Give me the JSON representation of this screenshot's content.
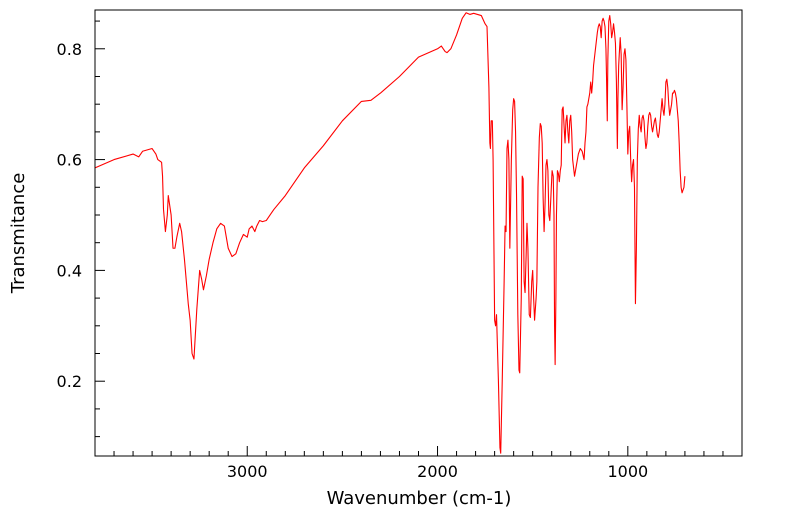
{
  "chart_data": {
    "type": "line",
    "xlabel": "Wavenumber (cm-1)",
    "ylabel": "Transmitance",
    "xlim": [
      3800,
      400
    ],
    "ylim": [
      0.065,
      0.87
    ],
    "x_reversed": true,
    "xticks": [
      {
        "value": 3000,
        "label": "3000"
      },
      {
        "value": 2000,
        "label": "2000"
      },
      {
        "value": 1000,
        "label": "1000"
      }
    ],
    "yticks": [
      {
        "value": 0.2,
        "label": "0.2"
      },
      {
        "value": 0.4,
        "label": "0.4"
      },
      {
        "value": 0.6,
        "label": "0.6"
      },
      {
        "value": 0.8,
        "label": "0.8"
      }
    ],
    "x_minor_step": 100,
    "y_minor_step": 0.05,
    "grid": false,
    "series": [
      {
        "color": "#ff0000",
        "points": [
          [
            3800,
            0.585
          ],
          [
            3700,
            0.6
          ],
          [
            3600,
            0.61
          ],
          [
            3570,
            0.605
          ],
          [
            3550,
            0.615
          ],
          [
            3500,
            0.62
          ],
          [
            3480,
            0.61
          ],
          [
            3470,
            0.6
          ],
          [
            3450,
            0.595
          ],
          [
            3445,
            0.57
          ],
          [
            3440,
            0.51
          ],
          [
            3430,
            0.47
          ],
          [
            3420,
            0.5
          ],
          [
            3415,
            0.535
          ],
          [
            3400,
            0.5
          ],
          [
            3390,
            0.44
          ],
          [
            3380,
            0.44
          ],
          [
            3370,
            0.46
          ],
          [
            3355,
            0.485
          ],
          [
            3345,
            0.47
          ],
          [
            3330,
            0.42
          ],
          [
            3310,
            0.34
          ],
          [
            3300,
            0.31
          ],
          [
            3290,
            0.25
          ],
          [
            3280,
            0.24
          ],
          [
            3265,
            0.33
          ],
          [
            3250,
            0.4
          ],
          [
            3240,
            0.385
          ],
          [
            3230,
            0.365
          ],
          [
            3215,
            0.39
          ],
          [
            3200,
            0.42
          ],
          [
            3180,
            0.45
          ],
          [
            3160,
            0.475
          ],
          [
            3140,
            0.485
          ],
          [
            3120,
            0.48
          ],
          [
            3100,
            0.44
          ],
          [
            3080,
            0.425
          ],
          [
            3060,
            0.43
          ],
          [
            3040,
            0.45
          ],
          [
            3020,
            0.465
          ],
          [
            3000,
            0.46
          ],
          [
            2990,
            0.475
          ],
          [
            2975,
            0.48
          ],
          [
            2960,
            0.47
          ],
          [
            2950,
            0.48
          ],
          [
            2935,
            0.49
          ],
          [
            2920,
            0.488
          ],
          [
            2900,
            0.49
          ],
          [
            2880,
            0.5
          ],
          [
            2860,
            0.51
          ],
          [
            2800,
            0.535
          ],
          [
            2700,
            0.585
          ],
          [
            2600,
            0.625
          ],
          [
            2500,
            0.67
          ],
          [
            2400,
            0.705
          ],
          [
            2350,
            0.707
          ],
          [
            2300,
            0.72
          ],
          [
            2200,
            0.75
          ],
          [
            2100,
            0.785
          ],
          [
            2000,
            0.8
          ],
          [
            1980,
            0.805
          ],
          [
            1960,
            0.795
          ],
          [
            1950,
            0.793
          ],
          [
            1930,
            0.8
          ],
          [
            1900,
            0.825
          ],
          [
            1870,
            0.855
          ],
          [
            1850,
            0.865
          ],
          [
            1830,
            0.862
          ],
          [
            1810,
            0.864
          ],
          [
            1790,
            0.862
          ],
          [
            1770,
            0.86
          ],
          [
            1750,
            0.845
          ],
          [
            1740,
            0.84
          ],
          [
            1730,
            0.73
          ],
          [
            1725,
            0.63
          ],
          [
            1722,
            0.62
          ],
          [
            1718,
            0.67
          ],
          [
            1712,
            0.67
          ],
          [
            1708,
            0.6
          ],
          [
            1700,
            0.31
          ],
          [
            1695,
            0.3
          ],
          [
            1690,
            0.32
          ],
          [
            1680,
            0.2
          ],
          [
            1672,
            0.08
          ],
          [
            1668,
            0.07
          ],
          [
            1660,
            0.2
          ],
          [
            1650,
            0.38
          ],
          [
            1645,
            0.48
          ],
          [
            1640,
            0.47
          ],
          [
            1635,
            0.62
          ],
          [
            1630,
            0.635
          ],
          [
            1625,
            0.6
          ],
          [
            1620,
            0.44
          ],
          [
            1612,
            0.6
          ],
          [
            1605,
            0.69
          ],
          [
            1600,
            0.71
          ],
          [
            1595,
            0.705
          ],
          [
            1590,
            0.65
          ],
          [
            1585,
            0.54
          ],
          [
            1578,
            0.32
          ],
          [
            1572,
            0.22
          ],
          [
            1568,
            0.215
          ],
          [
            1560,
            0.35
          ],
          [
            1555,
            0.57
          ],
          [
            1550,
            0.565
          ],
          [
            1545,
            0.38
          ],
          [
            1540,
            0.36
          ],
          [
            1535,
            0.42
          ],
          [
            1530,
            0.485
          ],
          [
            1525,
            0.44
          ],
          [
            1518,
            0.32
          ],
          [
            1512,
            0.315
          ],
          [
            1505,
            0.38
          ],
          [
            1500,
            0.4
          ],
          [
            1495,
            0.35
          ],
          [
            1490,
            0.31
          ],
          [
            1482,
            0.35
          ],
          [
            1478,
            0.38
          ],
          [
            1472,
            0.55
          ],
          [
            1465,
            0.64
          ],
          [
            1460,
            0.665
          ],
          [
            1455,
            0.66
          ],
          [
            1450,
            0.63
          ],
          [
            1445,
            0.53
          ],
          [
            1440,
            0.47
          ],
          [
            1435,
            0.52
          ],
          [
            1430,
            0.59
          ],
          [
            1425,
            0.6
          ],
          [
            1420,
            0.58
          ],
          [
            1415,
            0.5
          ],
          [
            1410,
            0.49
          ],
          [
            1402,
            0.55
          ],
          [
            1398,
            0.58
          ],
          [
            1392,
            0.57
          ],
          [
            1388,
            0.5
          ],
          [
            1385,
            0.3
          ],
          [
            1382,
            0.23
          ],
          [
            1378,
            0.35
          ],
          [
            1375,
            0.5
          ],
          [
            1370,
            0.58
          ],
          [
            1365,
            0.575
          ],
          [
            1360,
            0.56
          ],
          [
            1355,
            0.58
          ],
          [
            1350,
            0.59
          ],
          [
            1345,
            0.69
          ],
          [
            1340,
            0.695
          ],
          [
            1335,
            0.66
          ],
          [
            1330,
            0.63
          ],
          [
            1325,
            0.67
          ],
          [
            1320,
            0.68
          ],
          [
            1315,
            0.65
          ],
          [
            1310,
            0.63
          ],
          [
            1305,
            0.67
          ],
          [
            1300,
            0.68
          ],
          [
            1295,
            0.65
          ],
          [
            1290,
            0.6
          ],
          [
            1280,
            0.57
          ],
          [
            1270,
            0.59
          ],
          [
            1260,
            0.61
          ],
          [
            1250,
            0.62
          ],
          [
            1240,
            0.615
          ],
          [
            1230,
            0.6
          ],
          [
            1225,
            0.63
          ],
          [
            1220,
            0.65
          ],
          [
            1215,
            0.695
          ],
          [
            1210,
            0.7
          ],
          [
            1200,
            0.72
          ],
          [
            1195,
            0.74
          ],
          [
            1190,
            0.72
          ],
          [
            1185,
            0.74
          ],
          [
            1180,
            0.77
          ],
          [
            1170,
            0.8
          ],
          [
            1160,
            0.83
          ],
          [
            1155,
            0.84
          ],
          [
            1150,
            0.845
          ],
          [
            1145,
            0.84
          ],
          [
            1140,
            0.82
          ],
          [
            1135,
            0.85
          ],
          [
            1130,
            0.855
          ],
          [
            1125,
            0.85
          ],
          [
            1120,
            0.84
          ],
          [
            1115,
            0.8
          ],
          [
            1112,
            0.75
          ],
          [
            1108,
            0.67
          ],
          [
            1105,
            0.78
          ],
          [
            1100,
            0.85
          ],
          [
            1095,
            0.86
          ],
          [
            1090,
            0.845
          ],
          [
            1085,
            0.82
          ],
          [
            1080,
            0.83
          ],
          [
            1075,
            0.845
          ],
          [
            1070,
            0.83
          ],
          [
            1065,
            0.81
          ],
          [
            1060,
            0.74
          ],
          [
            1055,
            0.62
          ],
          [
            1052,
            0.71
          ],
          [
            1048,
            0.77
          ],
          [
            1045,
            0.79
          ],
          [
            1040,
            0.82
          ],
          [
            1035,
            0.79
          ],
          [
            1030,
            0.69
          ],
          [
            1025,
            0.73
          ],
          [
            1020,
            0.79
          ],
          [
            1015,
            0.8
          ],
          [
            1010,
            0.78
          ],
          [
            1005,
            0.7
          ],
          [
            1000,
            0.61
          ],
          [
            995,
            0.65
          ],
          [
            990,
            0.66
          ],
          [
            985,
            0.6
          ],
          [
            980,
            0.56
          ],
          [
            975,
            0.59
          ],
          [
            970,
            0.6
          ],
          [
            965,
            0.55
          ],
          [
            960,
            0.34
          ],
          [
            955,
            0.44
          ],
          [
            950,
            0.6
          ],
          [
            945,
            0.655
          ],
          [
            940,
            0.68
          ],
          [
            935,
            0.66
          ],
          [
            930,
            0.65
          ],
          [
            925,
            0.675
          ],
          [
            920,
            0.68
          ],
          [
            915,
            0.67
          ],
          [
            910,
            0.64
          ],
          [
            905,
            0.62
          ],
          [
            900,
            0.63
          ],
          [
            895,
            0.66
          ],
          [
            890,
            0.68
          ],
          [
            885,
            0.685
          ],
          [
            880,
            0.68
          ],
          [
            875,
            0.66
          ],
          [
            870,
            0.65
          ],
          [
            865,
            0.66
          ],
          [
            860,
            0.67
          ],
          [
            855,
            0.675
          ],
          [
            850,
            0.66
          ],
          [
            845,
            0.645
          ],
          [
            840,
            0.64
          ],
          [
            835,
            0.65
          ],
          [
            830,
            0.67
          ],
          [
            825,
            0.69
          ],
          [
            820,
            0.71
          ],
          [
            815,
            0.69
          ],
          [
            810,
            0.68
          ],
          [
            805,
            0.7
          ],
          [
            800,
            0.74
          ],
          [
            795,
            0.745
          ],
          [
            790,
            0.73
          ],
          [
            785,
            0.7
          ],
          [
            780,
            0.68
          ],
          [
            775,
            0.69
          ],
          [
            770,
            0.7
          ],
          [
            765,
            0.72
          ],
          [
            760,
            0.72
          ],
          [
            755,
            0.725
          ],
          [
            750,
            0.72
          ],
          [
            745,
            0.71
          ],
          [
            740,
            0.69
          ],
          [
            735,
            0.67
          ],
          [
            730,
            0.63
          ],
          [
            725,
            0.58
          ],
          [
            720,
            0.55
          ],
          [
            715,
            0.54
          ],
          [
            705,
            0.55
          ],
          [
            700,
            0.57
          ]
        ]
      }
    ]
  }
}
